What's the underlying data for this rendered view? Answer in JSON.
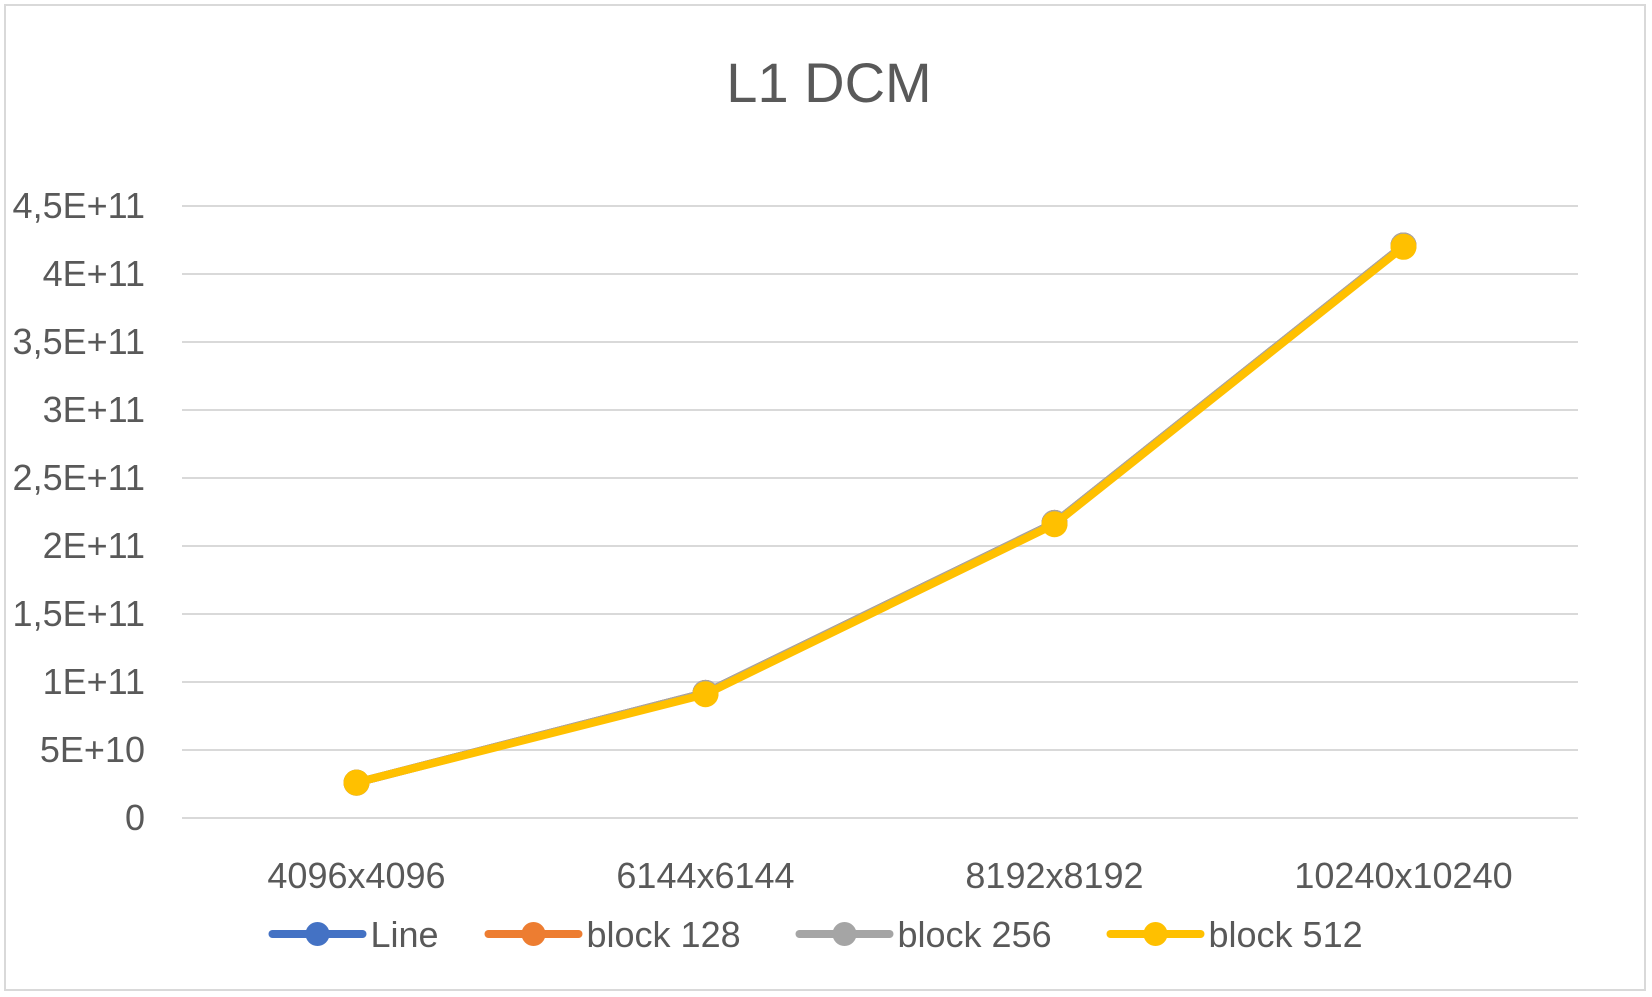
{
  "chart_data": {
    "type": "line",
    "title": "L1 DCM",
    "categories": [
      "4096x4096",
      "6144x6144",
      "8192x8192",
      "10240x10240"
    ],
    "ylim": [
      0,
      450000000000
    ],
    "y_ticks": [
      {
        "value": 0,
        "label": "0"
      },
      {
        "value": 50000000000,
        "label": "5E+10"
      },
      {
        "value": 100000000000,
        "label": "1E+11"
      },
      {
        "value": 150000000000,
        "label": "1,5E+11"
      },
      {
        "value": 200000000000,
        "label": "2E+11"
      },
      {
        "value": 250000000000,
        "label": "2,5E+11"
      },
      {
        "value": 300000000000,
        "label": "3E+11"
      },
      {
        "value": 350000000000,
        "label": "3,5E+11"
      },
      {
        "value": 400000000000,
        "label": "4E+11"
      },
      {
        "value": 450000000000,
        "label": "4,5E+11"
      }
    ],
    "grid": true,
    "legend_position": "bottom",
    "series": [
      {
        "name": "Line",
        "color": "#4472c4",
        "values": [
          26000000000,
          92000000000,
          217000000000,
          421000000000
        ]
      },
      {
        "name": "block 128",
        "color": "#ed7d31",
        "values": [
          26000000000,
          92000000000,
          217000000000,
          421000000000
        ]
      },
      {
        "name": "block 256",
        "color": "#a5a5a5",
        "values": [
          26000000000,
          92000000000,
          217000000000,
          421000000000
        ]
      },
      {
        "name": "block 512",
        "color": "#ffc000",
        "values": [
          26000000000,
          91000000000,
          216000000000,
          420000000000
        ]
      }
    ]
  }
}
